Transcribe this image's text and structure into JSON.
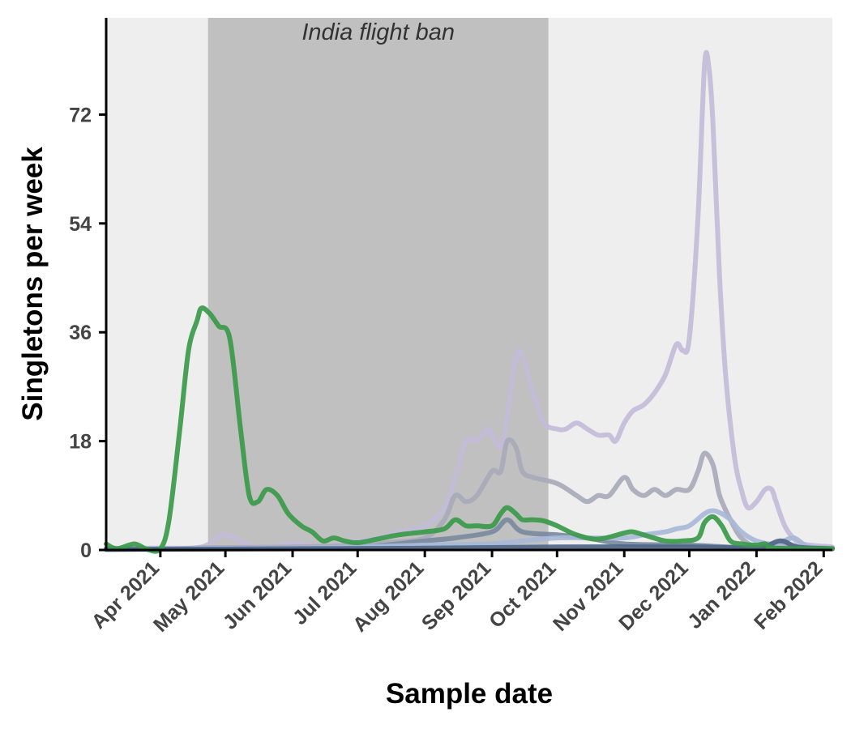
{
  "chart_data": {
    "type": "line",
    "title": "",
    "xlabel": "Sample date",
    "ylabel": "Singletons per week",
    "x_ticks": [
      "2021-04-01",
      "2021-05-01",
      "2021-06-01",
      "2021-07-01",
      "2021-08-01",
      "2021-09-01",
      "2021-10-01",
      "2021-11-01",
      "2021-12-01",
      "2022-01-01",
      "2022-02-01"
    ],
    "x_tick_labels": [
      "Apr 2021",
      "May 2021",
      "Jun 2021",
      "Jul 2021",
      "Aug 2021",
      "Sep 2021",
      "Oct 2021",
      "Nov 2021",
      "Dec 2021",
      "Jan 2022",
      "Feb 2022"
    ],
    "xlim": [
      "2021-03-07",
      "2022-02-05"
    ],
    "y_ticks": [
      0,
      18,
      36,
      54,
      72
    ],
    "y_tick_labels": [
      "0",
      "18",
      "36",
      "54",
      "72"
    ],
    "ylim": [
      0,
      88
    ],
    "grid": false,
    "legend": "none",
    "background_color": "#eeeeee",
    "shaded_region": {
      "start": "2021-04-23",
      "end": "2021-09-27",
      "label": "India flight ban",
      "color": "#c0c0c0"
    },
    "series": [
      {
        "color": "#c3bcd8",
        "x": [
          "2021-03-07",
          "2021-04-01",
          "2021-04-20",
          "2021-05-01",
          "2021-05-15",
          "2021-06-01",
          "2021-06-15",
          "2021-07-01",
          "2021-07-10",
          "2021-07-20",
          "2021-08-01",
          "2021-08-10",
          "2021-08-15",
          "2021-08-20",
          "2021-08-25",
          "2021-08-30",
          "2021-09-01",
          "2021-09-05",
          "2021-09-08",
          "2021-09-12",
          "2021-09-15",
          "2021-09-20",
          "2021-09-25",
          "2021-10-01",
          "2021-10-05",
          "2021-10-10",
          "2021-10-15",
          "2021-10-20",
          "2021-10-25",
          "2021-10-28",
          "2021-11-01",
          "2021-11-05",
          "2021-11-10",
          "2021-11-15",
          "2021-11-20",
          "2021-11-25",
          "2021-11-28",
          "2021-12-01",
          "2021-12-05",
          "2021-12-08",
          "2021-12-10",
          "2021-12-12",
          "2021-12-15",
          "2021-12-18",
          "2021-12-22",
          "2021-12-25",
          "2021-12-28",
          "2022-01-01",
          "2022-01-05",
          "2022-01-08",
          "2022-01-10",
          "2022-01-14",
          "2022-01-18",
          "2022-01-22",
          "2022-02-05"
        ],
        "values": [
          0.3,
          0.3,
          0.5,
          2.5,
          0.5,
          1,
          0.6,
          1.5,
          2,
          3,
          4,
          7,
          12,
          18,
          18,
          20,
          19,
          17,
          22,
          32,
          32,
          26,
          21,
          20,
          20,
          21,
          20,
          19,
          19,
          18,
          21,
          23,
          24,
          26,
          29,
          34,
          33,
          35,
          55,
          80,
          80,
          70,
          45,
          28,
          15,
          10,
          7,
          8,
          10,
          10,
          8,
          4,
          2,
          1,
          0.5
        ]
      },
      {
        "color": "#a8aab8",
        "x": [
          "2021-03-07",
          "2021-04-01",
          "2021-05-01",
          "2021-06-01",
          "2021-07-01",
          "2021-07-15",
          "2021-08-01",
          "2021-08-10",
          "2021-08-15",
          "2021-08-20",
          "2021-08-25",
          "2021-09-01",
          "2021-09-05",
          "2021-09-08",
          "2021-09-12",
          "2021-09-15",
          "2021-09-20",
          "2021-10-01",
          "2021-10-10",
          "2021-10-15",
          "2021-10-20",
          "2021-10-25",
          "2021-11-01",
          "2021-11-05",
          "2021-11-10",
          "2021-11-15",
          "2021-11-20",
          "2021-11-25",
          "2021-12-01",
          "2021-12-05",
          "2021-12-08",
          "2021-12-12",
          "2021-12-15",
          "2021-12-20",
          "2021-12-25",
          "2022-01-01",
          "2022-01-10",
          "2022-01-20",
          "2022-02-05"
        ],
        "values": [
          0.2,
          0.2,
          0.4,
          0.5,
          0.8,
          1.2,
          2,
          5,
          9,
          8,
          9,
          13,
          13,
          18,
          17,
          13,
          12,
          11,
          9,
          8,
          9,
          9,
          12,
          10,
          9,
          10,
          9,
          10,
          10,
          13,
          16,
          14,
          9,
          5,
          2,
          0.5,
          1,
          0.5,
          0.3
        ]
      },
      {
        "color": "#7a8a9e",
        "x": [
          "2021-03-07",
          "2021-05-01",
          "2021-06-01",
          "2021-07-01",
          "2021-08-01",
          "2021-08-15",
          "2021-09-01",
          "2021-09-08",
          "2021-09-15",
          "2021-10-01",
          "2021-10-15",
          "2021-11-01",
          "2021-12-01",
          "2022-01-01",
          "2022-02-05"
        ],
        "values": [
          0.1,
          0.2,
          0.2,
          0.4,
          1.5,
          2,
          3,
          5,
          3,
          2.5,
          2,
          1,
          0.8,
          0.3,
          0.2
        ]
      },
      {
        "color": "#a8b8d8",
        "x": [
          "2021-03-07",
          "2021-05-01",
          "2021-06-01",
          "2021-07-01",
          "2021-08-01",
          "2021-09-01",
          "2021-09-15",
          "2021-10-01",
          "2021-10-15",
          "2021-11-01",
          "2021-11-10",
          "2021-11-20",
          "2021-11-25",
          "2021-12-01",
          "2021-12-08",
          "2021-12-12",
          "2021-12-16",
          "2021-12-20",
          "2021-12-25",
          "2022-01-01",
          "2022-01-10",
          "2022-01-18",
          "2022-01-25",
          "2022-02-05"
        ],
        "values": [
          0.1,
          0.3,
          0.3,
          0.5,
          0.8,
          1,
          1.5,
          2,
          2,
          2,
          2.5,
          3,
          3.5,
          4,
          6,
          6.5,
          6,
          5,
          3,
          1.5,
          1,
          2,
          0.5,
          0.2
        ]
      },
      {
        "color": "#4f6688",
        "x": [
          "2021-03-07",
          "2021-06-01",
          "2021-08-01",
          "2021-10-01",
          "2021-12-01",
          "2022-01-01",
          "2022-01-12",
          "2022-01-20",
          "2022-02-05"
        ],
        "values": [
          0.1,
          0.2,
          0.3,
          0.5,
          0.5,
          0.4,
          1.5,
          0.5,
          0.2
        ]
      },
      {
        "color": "#3a9a4a",
        "x": [
          "2021-03-07",
          "2021-03-12",
          "2021-03-20",
          "2021-03-26",
          "2021-04-01",
          "2021-04-05",
          "2021-04-10",
          "2021-04-14",
          "2021-04-18",
          "2021-04-20",
          "2021-04-24",
          "2021-04-28",
          "2021-05-03",
          "2021-05-08",
          "2021-05-12",
          "2021-05-16",
          "2021-05-20",
          "2021-05-25",
          "2021-05-30",
          "2021-06-05",
          "2021-06-10",
          "2021-06-15",
          "2021-06-20",
          "2021-06-25",
          "2021-07-01",
          "2021-07-10",
          "2021-07-20",
          "2021-08-01",
          "2021-08-10",
          "2021-08-15",
          "2021-08-20",
          "2021-08-25",
          "2021-09-01",
          "2021-09-05",
          "2021-09-08",
          "2021-09-12",
          "2021-09-15",
          "2021-09-20",
          "2021-09-25",
          "2021-10-01",
          "2021-10-10",
          "2021-10-20",
          "2021-11-01",
          "2021-11-05",
          "2021-11-10",
          "2021-11-20",
          "2021-11-28",
          "2021-12-05",
          "2021-12-08",
          "2021-12-12",
          "2021-12-16",
          "2021-12-20",
          "2021-12-25",
          "2022-01-01",
          "2022-01-05",
          "2022-01-10",
          "2022-02-05"
        ],
        "values": [
          1,
          0.2,
          1,
          0.1,
          0.2,
          5,
          20,
          33,
          38,
          40,
          39,
          37,
          35,
          20,
          9,
          8,
          10,
          9,
          6,
          4,
          3,
          1.5,
          2,
          1.5,
          1.2,
          1.8,
          2.5,
          3,
          3.5,
          5,
          4,
          4,
          4,
          6,
          7,
          6,
          5,
          5,
          4.8,
          4,
          2.5,
          1.8,
          2.8,
          3,
          2.5,
          1.5,
          1.5,
          2,
          4.5,
          5.5,
          4,
          1.5,
          1,
          0.8,
          1,
          0.3,
          0.2
        ]
      }
    ]
  }
}
